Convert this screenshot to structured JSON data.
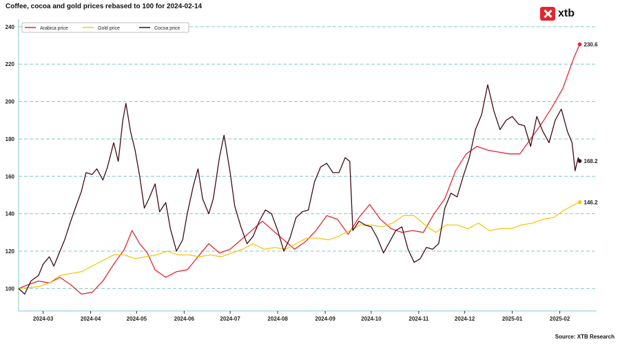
{
  "header": {
    "title": "Coffee, cocoa and gold prices rebased to 100 for 2024-02-14"
  },
  "logo": {
    "text": "xtb",
    "color": "#e3262d"
  },
  "footer": {
    "source": "Source: XTB Research"
  },
  "chart_data": {
    "type": "line",
    "title": "Coffee, cocoa and gold prices rebased to 100 for 2024-02-14",
    "xlabel": "",
    "ylabel": "",
    "ylim": [
      88,
      244
    ],
    "yticks": [
      100,
      120,
      140,
      160,
      180,
      200,
      220,
      240
    ],
    "xlim": [
      "2024-02-14",
      "2025-02-25"
    ],
    "xticks": [
      "2024-03",
      "2024-04",
      "2024-05",
      "2024-06",
      "2024-07",
      "2024-08",
      "2024-09",
      "2024-10",
      "2024-11",
      "2024-12",
      "2025-01",
      "2025-02"
    ],
    "grid": "horizontal dashed",
    "legend": "top-left",
    "series": [
      {
        "name": "Arabica price",
        "color": "#e3262d",
        "end_label": "230.6",
        "points": [
          [
            "2024-02-14",
            100
          ],
          [
            "2024-02-20",
            102
          ],
          [
            "2024-02-27",
            104
          ],
          [
            "2024-03-05",
            103
          ],
          [
            "2024-03-12",
            106
          ],
          [
            "2024-03-19",
            102
          ],
          [
            "2024-03-26",
            97
          ],
          [
            "2024-04-02",
            98
          ],
          [
            "2024-04-09",
            104
          ],
          [
            "2024-04-16",
            113
          ],
          [
            "2024-04-23",
            121
          ],
          [
            "2024-04-28",
            131
          ],
          [
            "2024-05-03",
            124
          ],
          [
            "2024-05-08",
            119
          ],
          [
            "2024-05-13",
            110
          ],
          [
            "2024-05-20",
            106
          ],
          [
            "2024-05-27",
            109
          ],
          [
            "2024-06-03",
            110
          ],
          [
            "2024-06-10",
            117
          ],
          [
            "2024-06-17",
            124
          ],
          [
            "2024-06-24",
            119
          ],
          [
            "2024-07-01",
            121
          ],
          [
            "2024-07-08",
            126
          ],
          [
            "2024-07-15",
            131
          ],
          [
            "2024-07-22",
            136
          ],
          [
            "2024-07-29",
            131
          ],
          [
            "2024-08-05",
            126
          ],
          [
            "2024-08-12",
            121
          ],
          [
            "2024-08-19",
            125
          ],
          [
            "2024-08-26",
            131
          ],
          [
            "2024-09-02",
            139
          ],
          [
            "2024-09-09",
            137
          ],
          [
            "2024-09-16",
            129
          ],
          [
            "2024-09-23",
            138
          ],
          [
            "2024-09-30",
            145
          ],
          [
            "2024-10-07",
            137
          ],
          [
            "2024-10-14",
            132
          ],
          [
            "2024-10-21",
            130
          ],
          [
            "2024-10-28",
            131
          ],
          [
            "2024-11-04",
            130
          ],
          [
            "2024-11-11",
            140
          ],
          [
            "2024-11-18",
            148
          ],
          [
            "2024-11-25",
            163
          ],
          [
            "2024-12-02",
            172
          ],
          [
            "2024-12-09",
            176
          ],
          [
            "2024-12-16",
            174
          ],
          [
            "2024-12-23",
            173
          ],
          [
            "2024-12-30",
            172
          ],
          [
            "2025-01-06",
            172
          ],
          [
            "2025-01-13",
            180
          ],
          [
            "2025-01-20",
            188
          ],
          [
            "2025-01-27",
            197
          ],
          [
            "2025-02-03",
            207
          ],
          [
            "2025-02-10",
            223
          ],
          [
            "2025-02-14",
            230.6
          ]
        ]
      },
      {
        "name": "Gold price",
        "color": "#f2c80f",
        "end_label": "146.2",
        "points": [
          [
            "2024-02-14",
            100
          ],
          [
            "2024-02-27",
            101
          ],
          [
            "2024-03-05",
            103
          ],
          [
            "2024-03-12",
            107
          ],
          [
            "2024-03-19",
            108
          ],
          [
            "2024-03-26",
            109
          ],
          [
            "2024-04-02",
            112
          ],
          [
            "2024-04-09",
            115
          ],
          [
            "2024-04-16",
            118
          ],
          [
            "2024-04-23",
            118
          ],
          [
            "2024-04-30",
            116
          ],
          [
            "2024-05-07",
            117
          ],
          [
            "2024-05-14",
            118
          ],
          [
            "2024-05-21",
            120
          ],
          [
            "2024-05-28",
            118
          ],
          [
            "2024-06-04",
            118
          ],
          [
            "2024-06-11",
            117
          ],
          [
            "2024-06-18",
            118
          ],
          [
            "2024-06-25",
            117
          ],
          [
            "2024-07-02",
            119
          ],
          [
            "2024-07-09",
            121
          ],
          [
            "2024-07-16",
            124
          ],
          [
            "2024-07-23",
            121
          ],
          [
            "2024-07-30",
            122
          ],
          [
            "2024-08-06",
            121
          ],
          [
            "2024-08-13",
            124
          ],
          [
            "2024-08-20",
            127
          ],
          [
            "2024-08-27",
            127
          ],
          [
            "2024-09-03",
            126
          ],
          [
            "2024-09-10",
            128
          ],
          [
            "2024-09-17",
            131
          ],
          [
            "2024-09-24",
            134
          ],
          [
            "2024-10-01",
            134
          ],
          [
            "2024-10-08",
            133
          ],
          [
            "2024-10-15",
            135
          ],
          [
            "2024-10-22",
            139
          ],
          [
            "2024-10-29",
            139
          ],
          [
            "2024-11-05",
            134
          ],
          [
            "2024-11-12",
            130
          ],
          [
            "2024-11-19",
            134
          ],
          [
            "2024-11-26",
            134
          ],
          [
            "2024-12-03",
            132
          ],
          [
            "2024-12-10",
            135
          ],
          [
            "2024-12-17",
            131
          ],
          [
            "2024-12-24",
            132
          ],
          [
            "2024-12-31",
            132
          ],
          [
            "2025-01-07",
            134
          ],
          [
            "2025-01-14",
            135
          ],
          [
            "2025-01-21",
            137
          ],
          [
            "2025-01-28",
            138
          ],
          [
            "2025-02-04",
            142
          ],
          [
            "2025-02-11",
            145
          ],
          [
            "2025-02-14",
            146.2
          ]
        ]
      },
      {
        "name": "Cocoa price",
        "color": "#3b0a12",
        "end_label": "168.2",
        "points": [
          [
            "2024-02-14",
            100
          ],
          [
            "2024-02-18",
            97
          ],
          [
            "2024-02-22",
            104
          ],
          [
            "2024-02-27",
            107
          ],
          [
            "2024-03-01",
            113
          ],
          [
            "2024-03-05",
            117
          ],
          [
            "2024-03-08",
            112
          ],
          [
            "2024-03-12",
            120
          ],
          [
            "2024-03-15",
            126
          ],
          [
            "2024-03-19",
            136
          ],
          [
            "2024-03-22",
            143
          ],
          [
            "2024-03-26",
            152
          ],
          [
            "2024-03-29",
            162
          ],
          [
            "2024-04-02",
            161
          ],
          [
            "2024-04-05",
            164
          ],
          [
            "2024-04-09",
            158
          ],
          [
            "2024-04-12",
            165
          ],
          [
            "2024-04-16",
            178
          ],
          [
            "2024-04-19",
            168
          ],
          [
            "2024-04-22",
            190
          ],
          [
            "2024-04-24",
            199
          ],
          [
            "2024-04-27",
            184
          ],
          [
            "2024-04-30",
            174
          ],
          [
            "2024-05-03",
            160
          ],
          [
            "2024-05-06",
            143
          ],
          [
            "2024-05-09",
            148
          ],
          [
            "2024-05-13",
            156
          ],
          [
            "2024-05-16",
            141
          ],
          [
            "2024-05-20",
            146
          ],
          [
            "2024-05-23",
            132
          ],
          [
            "2024-05-27",
            120
          ],
          [
            "2024-05-31",
            126
          ],
          [
            "2024-06-03",
            140
          ],
          [
            "2024-06-07",
            155
          ],
          [
            "2024-06-10",
            164
          ],
          [
            "2024-06-13",
            148
          ],
          [
            "2024-06-17",
            140
          ],
          [
            "2024-06-20",
            148
          ],
          [
            "2024-06-24",
            170
          ],
          [
            "2024-06-27",
            182
          ],
          [
            "2024-07-01",
            162
          ],
          [
            "2024-07-04",
            144
          ],
          [
            "2024-07-08",
            133
          ],
          [
            "2024-07-12",
            124
          ],
          [
            "2024-07-16",
            128
          ],
          [
            "2024-07-20",
            136
          ],
          [
            "2024-07-24",
            142
          ],
          [
            "2024-07-28",
            140
          ],
          [
            "2024-08-01",
            131
          ],
          [
            "2024-08-05",
            120
          ],
          [
            "2024-08-09",
            127
          ],
          [
            "2024-08-13",
            138
          ],
          [
            "2024-08-17",
            141
          ],
          [
            "2024-08-21",
            142
          ],
          [
            "2024-08-25",
            157
          ],
          [
            "2024-08-29",
            165
          ],
          [
            "2024-09-02",
            167
          ],
          [
            "2024-09-06",
            162
          ],
          [
            "2024-09-10",
            162
          ],
          [
            "2024-09-14",
            170
          ],
          [
            "2024-09-17",
            168
          ],
          [
            "2024-09-19",
            131
          ],
          [
            "2024-09-23",
            136
          ],
          [
            "2024-09-27",
            134
          ],
          [
            "2024-10-01",
            133
          ],
          [
            "2024-10-05",
            127
          ],
          [
            "2024-10-09",
            119
          ],
          [
            "2024-10-13",
            125
          ],
          [
            "2024-10-17",
            131
          ],
          [
            "2024-10-21",
            133
          ],
          [
            "2024-10-25",
            121
          ],
          [
            "2024-10-29",
            114
          ],
          [
            "2024-11-02",
            116
          ],
          [
            "2024-11-06",
            122
          ],
          [
            "2024-11-10",
            121
          ],
          [
            "2024-11-14",
            124
          ],
          [
            "2024-11-18",
            143
          ],
          [
            "2024-11-22",
            151
          ],
          [
            "2024-11-26",
            149
          ],
          [
            "2024-11-30",
            160
          ],
          [
            "2024-12-04",
            170
          ],
          [
            "2024-12-08",
            185
          ],
          [
            "2024-12-12",
            193
          ],
          [
            "2024-12-16",
            209
          ],
          [
            "2024-12-20",
            195
          ],
          [
            "2024-12-24",
            185
          ],
          [
            "2024-12-28",
            190
          ],
          [
            "2025-01-01",
            192
          ],
          [
            "2025-01-05",
            188
          ],
          [
            "2025-01-09",
            187
          ],
          [
            "2025-01-13",
            176
          ],
          [
            "2025-01-17",
            192
          ],
          [
            "2025-01-21",
            184
          ],
          [
            "2025-01-25",
            178
          ],
          [
            "2025-01-29",
            190
          ],
          [
            "2025-02-02",
            196
          ],
          [
            "2025-02-06",
            184
          ],
          [
            "2025-02-09",
            178
          ],
          [
            "2025-02-11",
            163
          ],
          [
            "2025-02-13",
            170
          ],
          [
            "2025-02-14",
            168.2
          ]
        ]
      }
    ]
  }
}
